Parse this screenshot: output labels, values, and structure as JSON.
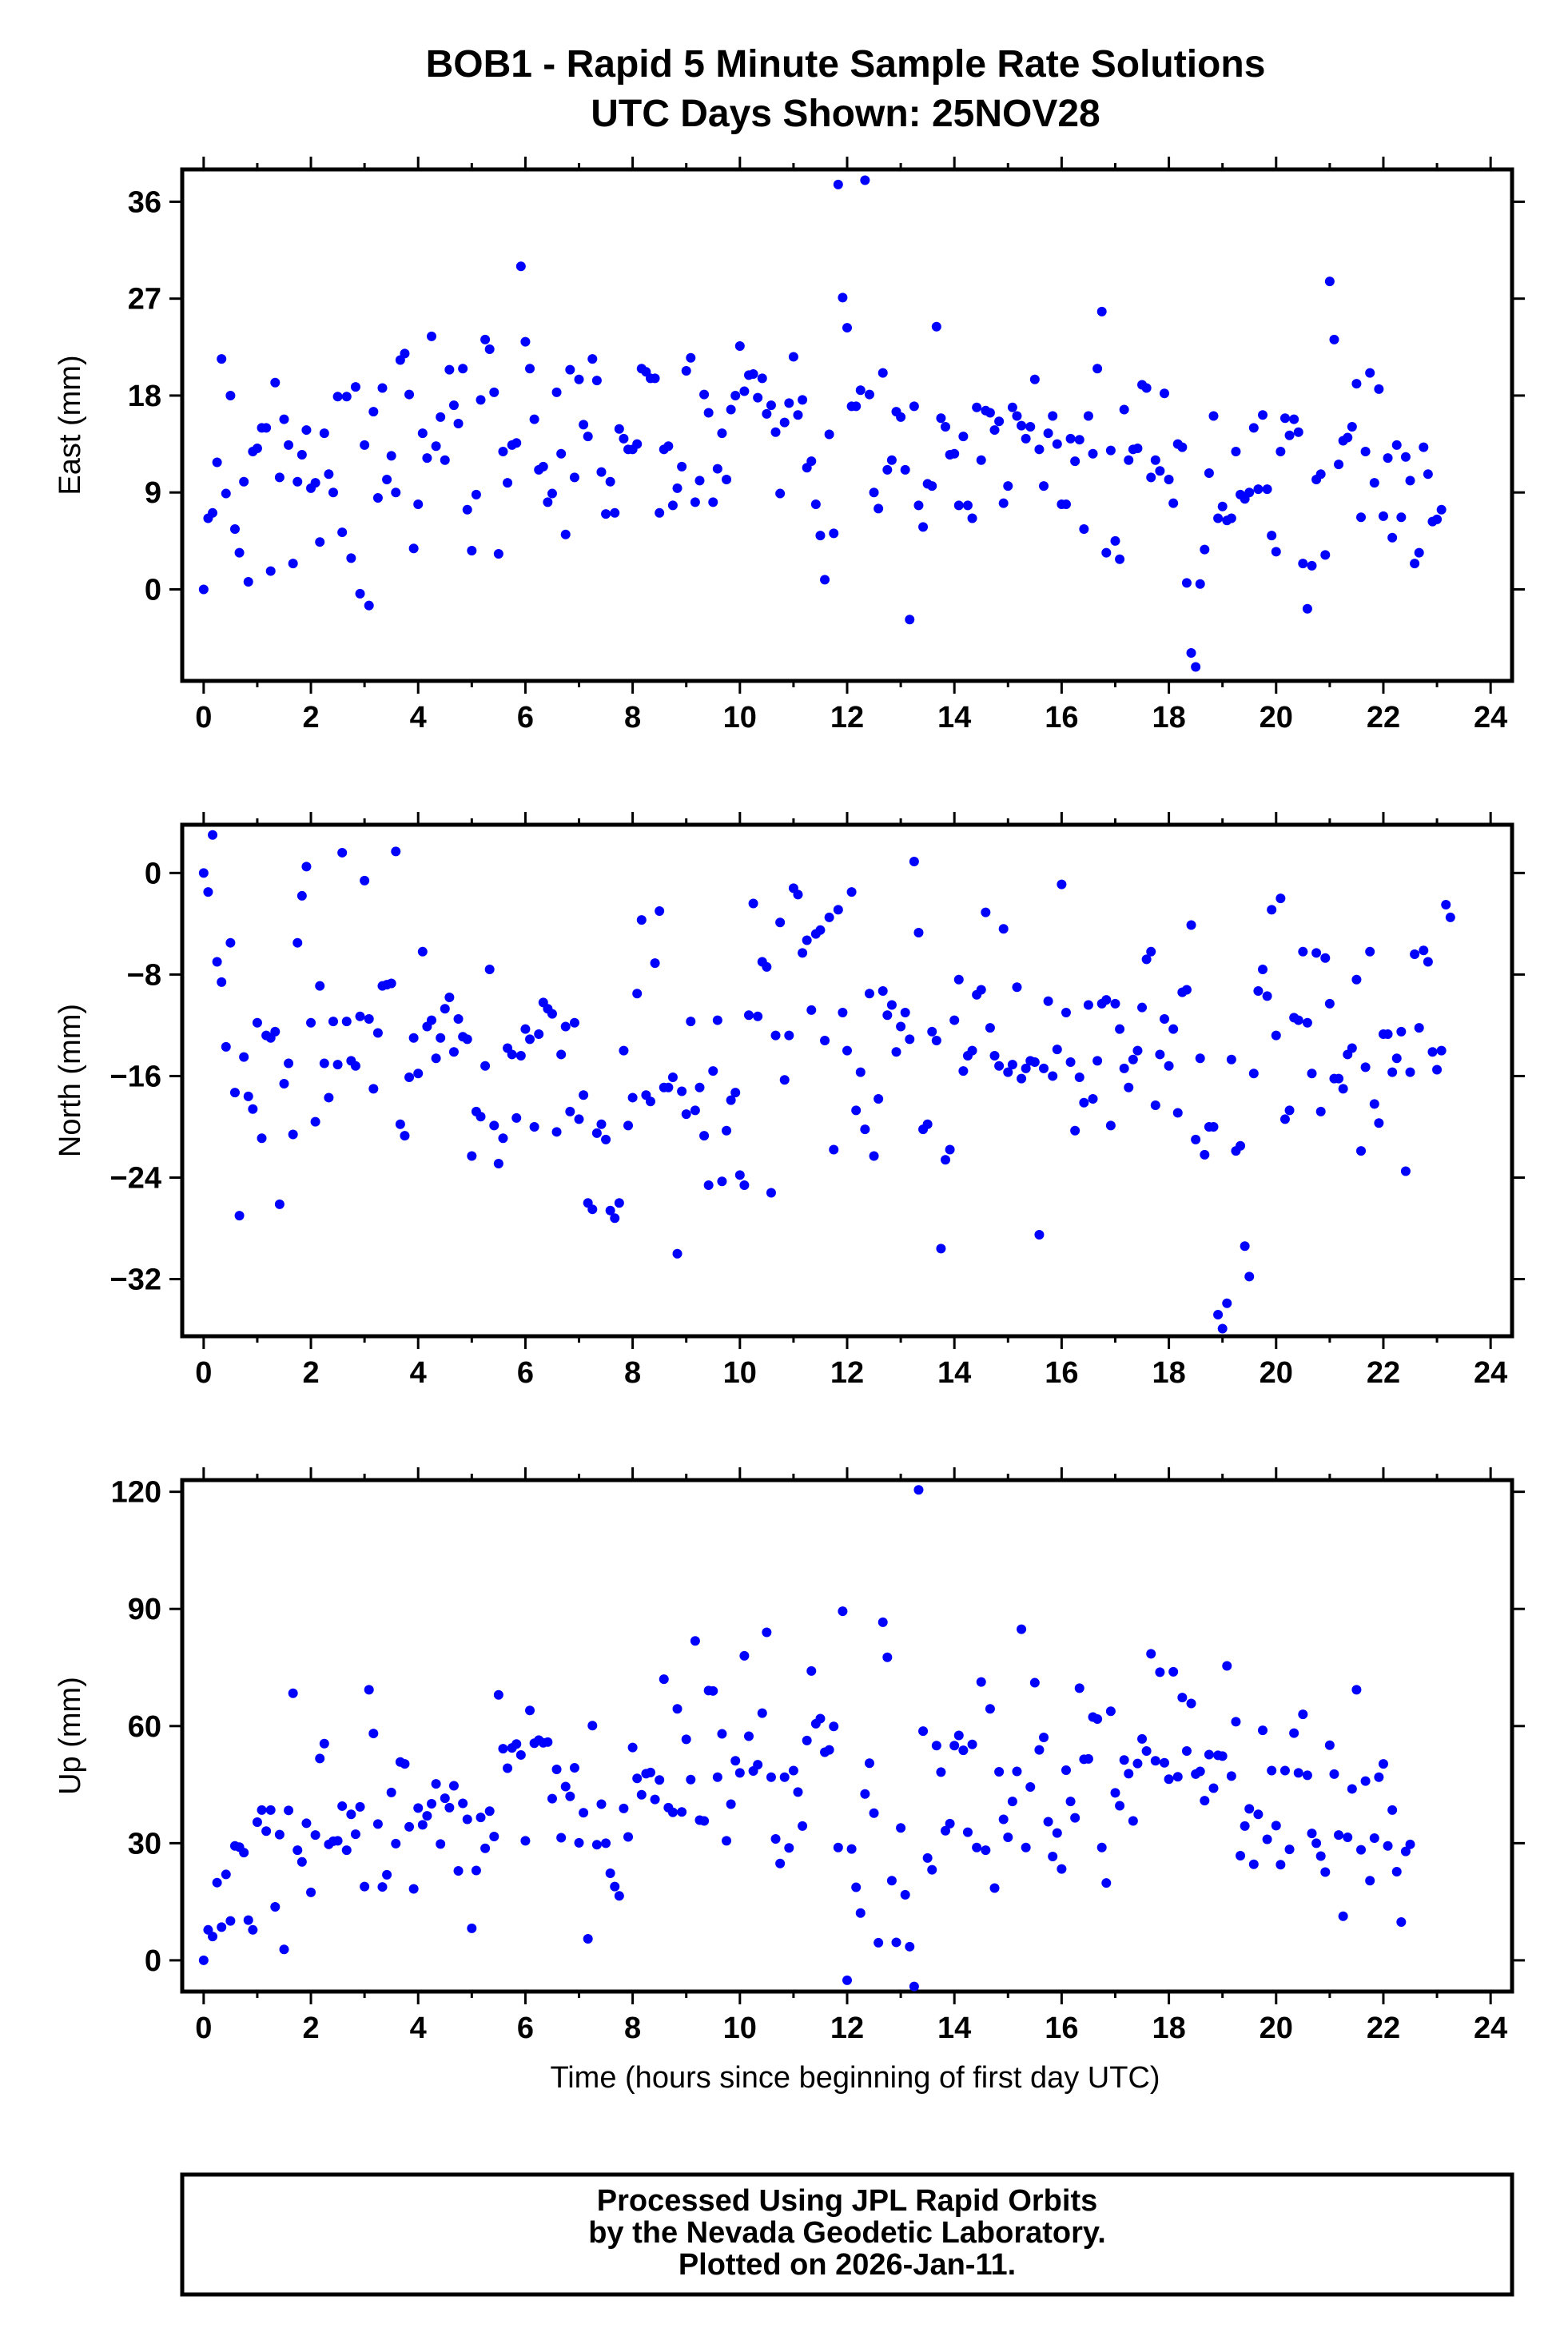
{
  "title": {
    "line1": "BOB1 - Rapid 5 Minute Sample Rate Solutions",
    "line2": "UTC Days Shown:  25NOV28"
  },
  "footer": {
    "line1": "Processed Using JPL Rapid Orbits",
    "line2": "by the Nevada Geodetic Laboratory.",
    "line3": "Plotted on 2026-Jan-11."
  },
  "colors": {
    "points": "#0000ff",
    "frame": "#000000"
  },
  "chart_data": [
    {
      "type": "scatter",
      "ylabel": "East (mm)",
      "xlabel": "",
      "xlim": [
        -0.4,
        24.4
      ],
      "ylim": [
        -8.5,
        39
      ],
      "xticks": [
        "0",
        "2",
        "4",
        "6",
        "8",
        "10",
        "12",
        "14",
        "16",
        "18",
        "20",
        "22",
        "24"
      ],
      "yticks": [
        "0",
        "9",
        "18",
        "27",
        "36"
      ],
      "y": [
        0.0,
        6.6,
        7.1,
        11.8,
        21.4,
        8.9,
        18.0,
        5.6,
        3.4,
        10.0,
        0.7,
        12.8,
        13.1,
        15.0,
        15.0,
        1.7,
        19.2,
        10.4,
        15.8,
        13.4,
        2.4,
        10.0,
        12.5,
        14.8,
        9.4,
        9.9,
        4.4,
        14.5,
        10.7,
        9.0,
        17.9,
        5.3,
        17.9,
        2.9,
        18.8,
        -0.4,
        13.4,
        -1.5,
        16.5,
        8.5,
        18.7,
        10.2,
        12.4,
        9.0,
        21.3,
        21.9,
        18.1,
        3.8,
        7.9,
        14.5,
        12.2,
        23.5,
        13.3,
        16.0,
        12.0,
        20.4,
        17.1,
        15.4,
        20.5,
        7.4,
        3.6,
        8.8,
        17.6,
        23.2,
        22.3,
        18.3,
        3.3,
        12.8,
        9.9,
        13.4,
        13.6,
        30.0,
        23.0,
        20.5,
        15.8,
        11.1,
        11.4,
        8.1,
        8.9,
        18.3,
        12.6,
        5.1,
        20.4,
        10.4,
        19.5,
        15.3,
        14.2,
        21.4,
        19.4,
        10.9,
        7.0,
        10.0,
        7.1,
        14.9,
        14.0,
        13.0,
        13.0,
        13.5,
        20.5,
        20.2,
        19.6,
        19.6,
        7.1,
        13.0,
        13.3,
        7.8,
        9.4,
        11.4,
        20.3,
        21.5,
        8.1,
        10.1,
        18.1,
        16.4,
        8.1,
        11.2,
        14.5,
        10.2,
        16.7,
        18.0,
        22.6,
        18.4,
        19.9,
        20.0,
        17.8,
        19.6,
        16.3,
        17.1,
        14.6,
        8.9,
        15.5,
        17.3,
        21.6,
        16.2,
        17.6,
        11.3,
        11.9,
        7.9,
        5.0,
        0.9,
        14.4,
        5.2,
        37.6,
        27.1,
        24.3,
        17.0,
        17.0,
        18.5,
        38.0,
        18.1,
        9.0,
        7.5,
        20.1,
        11.1,
        12.0,
        16.5,
        16.0,
        11.1,
        -2.8,
        17.0,
        7.8,
        5.8,
        9.8,
        9.6,
        24.4,
        15.9,
        15.1,
        12.5,
        12.6,
        7.8,
        14.2,
        7.8,
        6.6,
        16.9,
        12.0,
        16.6,
        16.4,
        14.8,
        15.6,
        8.0,
        9.6,
        16.9,
        16.1,
        15.2,
        14.0,
        15.1,
        19.5,
        13.0,
        9.6,
        14.5,
        16.1,
        13.5,
        7.9,
        7.9,
        14.0,
        11.9,
        13.9,
        5.6,
        16.1,
        12.6,
        20.5,
        25.8,
        3.4,
        12.9,
        4.5,
        2.8,
        16.7,
        12.0,
        13.0,
        13.1,
        19.0,
        18.7,
        10.4,
        12.0,
        11.0,
        18.2,
        10.2,
        8.0,
        13.5,
        13.2,
        0.6,
        -5.9,
        -7.2,
        0.5,
        3.7,
        10.8,
        16.1,
        6.6,
        7.7,
        6.4,
        6.6,
        12.8,
        8.8,
        8.4,
        9.0,
        15.0,
        9.3,
        16.2,
        9.3,
        5.0,
        3.5,
        12.8,
        15.9,
        14.3,
        15.8,
        14.6,
        2.4,
        -1.8,
        2.2,
        10.2,
        10.7,
        3.2,
        28.6,
        23.2,
        11.6,
        13.8,
        14.1,
        15.1,
        19.1,
        6.7,
        12.8,
        20.1,
        9.9,
        18.6,
        6.8,
        12.2,
        4.8,
        13.4,
        6.7,
        12.3,
        10.1,
        2.4,
        3.4,
        13.2,
        10.7,
        6.3,
        6.5,
        7.4
      ],
      "x_note_start": "",
      "series": [
        {
          "name": "",
          "color": "#0000ff"
        }
      ]
    },
    {
      "type": "scatter",
      "ylabel": "North (mm)",
      "xlabel": "",
      "xlim": [
        -0.4,
        24.4
      ],
      "ylim": [
        -36.5,
        3.8
      ],
      "xticks": [
        "0",
        "2",
        "4",
        "6",
        "8",
        "10",
        "12",
        "14",
        "16",
        "18",
        "20",
        "22",
        "24"
      ],
      "yticks": [
        "0",
        "−8",
        "−16",
        "−24",
        "−32"
      ],
      "y": [
        0.0,
        -1.5,
        3.0,
        -7.0,
        -8.6,
        -13.7,
        -5.5,
        -17.3,
        -27.0,
        -14.5,
        -17.6,
        -18.6,
        -11.8,
        -20.9,
        -12.8,
        -13.0,
        -12.5,
        -26.1,
        -16.6,
        -15.0,
        -20.6,
        -5.5,
        -1.8,
        0.5,
        -11.8,
        -19.6,
        -8.9,
        -15.0,
        -17.7,
        -11.7,
        -15.1,
        1.6,
        -11.7,
        -14.8,
        -15.2,
        -11.3,
        -0.6,
        -11.5,
        -17.0,
        -12.6,
        -8.9,
        -8.8,
        -8.7,
        1.7,
        -19.8,
        -20.7,
        -16.1,
        -13.0,
        -15.8,
        -6.2,
        -12.1,
        -11.6,
        -14.6,
        -13.0,
        -10.7,
        -9.8,
        -14.1,
        -11.5,
        -12.9,
        -13.1,
        -22.3,
        -18.8,
        -19.2,
        -15.2,
        -7.6,
        -19.9,
        -22.9,
        -20.9,
        -13.8,
        -14.3,
        -19.3,
        -14.4,
        -12.3,
        -13.1,
        -20.0,
        -12.7,
        -10.2,
        -10.7,
        -11.1,
        -20.4,
        -14.3,
        -12.1,
        -18.8,
        -11.8,
        -19.4,
        -17.5,
        -26.0,
        -26.5,
        -20.5,
        -19.8,
        -21.0,
        -26.6,
        -27.2,
        -26.0,
        -14.0,
        -19.9,
        -17.7,
        -9.5,
        -3.7,
        -17.5,
        -18.0,
        -7.1,
        -3.0,
        -16.9,
        -16.9,
        -16.1,
        -30.0,
        -17.2,
        -19.0,
        -11.7,
        -18.7,
        -16.9,
        -20.7,
        -24.6,
        -15.6,
        -11.6,
        -24.3,
        -20.3,
        -17.9,
        -17.3,
        -23.8,
        -24.6,
        -11.2,
        -2.4,
        -11.3,
        -7.0,
        -7.4,
        -25.2,
        -12.8,
        -3.9,
        -16.3,
        -12.8,
        -1.2,
        -1.7,
        -6.3,
        -5.3,
        -10.8,
        -4.8,
        -4.5,
        -13.2,
        -3.5,
        -21.8,
        -2.9,
        -11.0,
        -14.0,
        -1.5,
        -18.7,
        -15.7,
        -20.2,
        -9.5,
        -22.3,
        -17.8,
        -9.3,
        -11.2,
        -10.4,
        -14.1,
        -12.1,
        -11.0,
        -13.1,
        0.9,
        -4.7,
        -20.2,
        -19.8,
        -12.5,
        -13.2,
        -29.6,
        -22.6,
        -21.8,
        -11.6,
        -8.4,
        -15.6,
        -14.4,
        -14.0,
        -9.6,
        -9.2,
        -3.1,
        -12.2,
        -14.4,
        -15.2,
        -4.4,
        -15.7,
        -15.1,
        -9.0,
        -16.2,
        -15.4,
        -14.8,
        -14.9,
        -28.5,
        -15.4,
        -10.1,
        -16.0,
        -13.9,
        -0.9,
        -11.0,
        -14.9,
        -20.3,
        -16.1,
        -18.1,
        -10.4,
        -17.8,
        -14.8,
        -10.3,
        -10.0,
        -19.9,
        -10.3,
        -12.3,
        -15.4,
        -16.9,
        -14.7,
        -14.0,
        -10.6,
        -6.8,
        -6.2,
        -18.3,
        -14.3,
        -11.5,
        -15.2,
        -12.3,
        -18.9,
        -9.4,
        -9.2,
        -4.1,
        -21.0,
        -14.6,
        -22.2,
        -20.0,
        -20.0,
        -34.8,
        -35.9,
        -33.9,
        -14.7,
        -21.9,
        -21.5,
        -29.4,
        -31.8,
        -15.8,
        -9.3,
        -7.6,
        -9.7,
        -2.9,
        -12.8,
        -2.0,
        -19.4,
        -18.7,
        -11.4,
        -11.6,
        -6.2,
        -11.8,
        -15.8,
        -6.3,
        -18.8,
        -6.7,
        -10.3,
        -16.2,
        -16.2,
        -17.0,
        -14.3,
        -13.8,
        -8.4,
        -21.9,
        -15.3,
        -6.2,
        -18.2,
        -19.7,
        -12.7,
        -12.7,
        -15.7,
        -14.6,
        -12.5,
        -23.5,
        -15.7,
        -6.4,
        -12.2,
        -6.1,
        -7.0,
        -14.1,
        -15.5,
        -14.0,
        -2.5,
        -3.5
      ]
    },
    {
      "type": "scatter",
      "ylabel": "Up (mm)",
      "xlabel": "Time (hours since beginning of first day UTC)",
      "xlim": [
        -0.4,
        24.4
      ],
      "ylim": [
        -8,
        123
      ],
      "xticks": [
        "0",
        "2",
        "4",
        "6",
        "8",
        "10",
        "12",
        "14",
        "16",
        "18",
        "20",
        "22",
        "24"
      ],
      "yticks": [
        "0",
        "30",
        "60",
        "90",
        "120"
      ],
      "y": [
        0.0,
        7.8,
        6.1,
        19.9,
        8.5,
        22.0,
        10.1,
        29.3,
        29.0,
        27.6,
        10.3,
        7.8,
        35.4,
        38.5,
        33.1,
        38.5,
        13.7,
        32.2,
        2.8,
        38.4,
        68.4,
        28.2,
        25.2,
        35.1,
        17.4,
        32.1,
        51.7,
        55.5,
        29.7,
        30.5,
        30.6,
        39.5,
        28.2,
        37.4,
        32.3,
        39.3,
        18.9,
        69.3,
        58.1,
        34.9,
        18.8,
        21.9,
        43.0,
        29.9,
        50.8,
        50.3,
        34.2,
        18.3,
        39.0,
        34.7,
        37.0,
        40.1,
        45.2,
        29.8,
        41.5,
        39.1,
        44.7,
        22.9,
        40.2,
        36.1,
        8.2,
        23.0,
        36.6,
        28.7,
        38.2,
        31.7,
        68.0,
        54.2,
        49.2,
        54.4,
        55.4,
        52.6,
        30.6,
        64.0,
        55.6,
        56.4,
        55.7,
        55.9,
        41.4,
        48.9,
        31.4,
        44.5,
        42.0,
        49.3,
        30.1,
        37.8,
        5.5,
        60.1,
        29.6,
        40.0,
        30.0,
        22.3,
        18.9,
        16.5,
        38.9,
        31.6,
        54.5,
        46.6,
        42.4,
        47.8,
        48.1,
        41.2,
        46.2,
        72.0,
        39.1,
        37.9,
        64.4,
        38.0,
        56.6,
        46.3,
        81.8,
        35.9,
        35.7,
        69.1,
        69.0,
        46.9,
        58.0,
        30.6,
        40.0,
        51.1,
        48.0,
        78.0,
        57.4,
        48.5,
        50.1,
        63.3,
        84.0,
        46.9,
        31.1,
        24.8,
        46.9,
        28.8,
        48.6,
        43.1,
        34.4,
        56.3,
        74.1,
        60.6,
        61.9,
        53.3,
        53.9,
        59.9,
        28.9,
        89.4,
        -5.1,
        28.5,
        18.7,
        12.1,
        42.6,
        50.5,
        37.7,
        4.5,
        86.6,
        77.6,
        20.4,
        4.6,
        33.9,
        16.8,
        3.5,
        -6.7,
        120.5,
        58.7,
        26.2,
        23.2,
        55.0,
        48.2,
        33.2,
        35.0,
        55.0,
        57.6,
        53.8,
        32.8,
        55.3,
        28.9,
        71.3,
        28.2,
        64.4,
        18.5,
        48.3,
        36.1,
        31.5,
        40.7,
        48.4,
        84.8,
        28.9,
        44.4,
        71.1,
        53.9,
        57.1,
        35.5,
        26.6,
        32.6,
        23.4,
        48.7,
        40.7,
        36.5,
        69.7,
        51.5,
        51.6,
        62.3,
        61.8,
        28.9,
        19.8,
        63.8,
        42.9,
        39.6,
        51.3,
        47.8,
        35.7,
        50.4,
        56.7,
        53.6,
        78.5,
        51.1,
        73.8,
        50.6,
        46.4,
        73.9,
        47.0,
        67.3,
        53.6,
        65.8,
        47.7,
        48.4,
        40.9,
        52.7,
        44.1,
        52.5,
        52.3,
        75.4,
        47.2,
        61.1,
        26.8,
        34.4,
        38.8,
        24.6,
        37.4,
        58.9,
        31.0,
        48.6,
        34.5,
        24.5,
        48.6,
        28.4,
        58.2,
        48.0,
        63.0,
        47.4,
        32.5,
        30.0,
        26.7,
        22.6,
        55.1,
        47.7,
        32.1,
        11.3,
        31.5,
        43.9,
        69.3,
        28.3,
        45.9,
        20.4,
        31.3,
        46.9,
        50.3,
        29.3,
        38.5,
        22.7,
        9.8,
        27.9,
        29.7
      ]
    }
  ]
}
